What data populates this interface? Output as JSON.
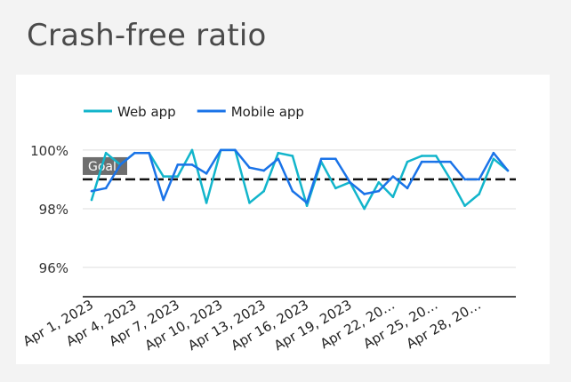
{
  "title": "Crash-free ratio",
  "chart_data": {
    "type": "line",
    "title": "Crash-free ratio",
    "xlabel": "",
    "ylabel": "",
    "x": [
      "Apr 1, 2023",
      "Apr 2, 2023",
      "Apr 3, 2023",
      "Apr 4, 2023",
      "Apr 5, 2023",
      "Apr 6, 2023",
      "Apr 7, 2023",
      "Apr 8, 2023",
      "Apr 9, 2023",
      "Apr 10, 2023",
      "Apr 11, 2023",
      "Apr 12, 2023",
      "Apr 13, 2023",
      "Apr 14, 2023",
      "Apr 15, 2023",
      "Apr 16, 2023",
      "Apr 17, 2023",
      "Apr 18, 2023",
      "Apr 19, 2023",
      "Apr 20, 2023",
      "Apr 21, 2023",
      "Apr 22, 2023",
      "Apr 23, 2023",
      "Apr 24, 2023",
      "Apr 25, 2023",
      "Apr 26, 2023",
      "Apr 27, 2023",
      "Apr 28, 2023",
      "Apr 29, 2023",
      "Apr 30, 2023"
    ],
    "tick_labels": [
      "Apr 1, 2023",
      "Apr 4, 2023",
      "Apr 7, 2023",
      "Apr 10, 2023",
      "Apr 13, 2023",
      "Apr 16, 2023",
      "Apr 19, 2023",
      "Apr 22, 20…",
      "Apr 25, 20…",
      "Apr 28, 20…"
    ],
    "tick_every": 3,
    "y_ticks": [
      "96%",
      "98%",
      "100%"
    ],
    "y_tick_values": [
      96,
      98,
      100
    ],
    "ylim": [
      95,
      101.3
    ],
    "series": [
      {
        "name": "Web app",
        "color": "#12b5cb",
        "values": [
          98.3,
          99.9,
          99.5,
          99.9,
          99.9,
          99.1,
          99.1,
          100.0,
          98.2,
          100.0,
          100.0,
          98.2,
          98.6,
          99.9,
          99.8,
          98.1,
          99.6,
          98.7,
          98.9,
          98.0,
          98.9,
          98.4,
          99.6,
          99.8,
          99.8,
          99.0,
          98.1,
          98.5,
          99.7,
          99.3
        ]
      },
      {
        "name": "Mobile app",
        "color": "#1a73e8",
        "values": [
          98.6,
          98.7,
          99.5,
          99.9,
          99.9,
          98.3,
          99.5,
          99.5,
          99.2,
          100.0,
          100.0,
          99.4,
          99.3,
          99.7,
          98.6,
          98.2,
          99.7,
          99.7,
          98.9,
          98.5,
          98.6,
          99.1,
          98.7,
          99.6,
          99.6,
          99.6,
          99.0,
          99.0,
          99.9,
          99.3
        ]
      }
    ],
    "goal": {
      "label": "Goal",
      "value": 99
    },
    "legend": "top-left",
    "grid": true
  }
}
